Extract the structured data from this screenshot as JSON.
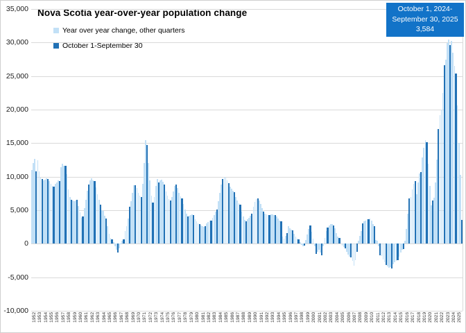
{
  "title": "Nova Scotia year-over-year population change",
  "legend": {
    "other_quarters": "Year over year change, other quarters",
    "oct_sep": "October 1-September 30"
  },
  "callout": {
    "line1": "October 1, 2024-",
    "line2": "September 30, 2025",
    "value": "3,584"
  },
  "colors": {
    "light_bar": "#c2e0f6",
    "dark_bar": "#2171b5",
    "callout_bg": "#1273c8",
    "gridline": "#d9d9d9",
    "axis_text": "#1a1a1a"
  },
  "chart_data": {
    "type": "bar",
    "title": "Nova Scotia year-over-year population change",
    "xlabel": "",
    "ylabel": "",
    "ylim": [
      -10000,
      35000
    ],
    "ytick_step": 5000,
    "ytick_labels": [
      "35,000",
      "30,000",
      "25,000",
      "20,000",
      "15,000",
      "10,000",
      "5,000",
      "0",
      "-5,000",
      "-10,000"
    ],
    "ytick_values": [
      35000,
      30000,
      25000,
      20000,
      15000,
      10000,
      5000,
      0,
      -5000,
      -10000
    ],
    "grid": true,
    "legend_position": "top-left",
    "series": [
      {
        "name": "Year over year change, other quarters",
        "role": "light",
        "quarters": "Q1-Q3"
      },
      {
        "name": "October 1-September 30",
        "role": "dark",
        "quarters": "Q4 (year ending September 30)"
      }
    ],
    "dark_quarter_index": 3,
    "callout": {
      "label": "October 1, 2024-September 30, 2025",
      "value": 3584
    },
    "years": [
      1952,
      1953,
      1954,
      1955,
      1956,
      1957,
      1958,
      1959,
      1960,
      1961,
      1962,
      1963,
      1964,
      1965,
      1966,
      1967,
      1968,
      1969,
      1970,
      1971,
      1972,
      1973,
      1974,
      1975,
      1976,
      1977,
      1978,
      1979,
      1980,
      1981,
      1982,
      1983,
      1984,
      1985,
      1986,
      1987,
      1988,
      1989,
      1990,
      1991,
      1992,
      1993,
      1994,
      1995,
      1996,
      1997,
      1998,
      1999,
      2000,
      2001,
      2002,
      2003,
      2004,
      2005,
      2006,
      2007,
      2008,
      2009,
      2010,
      2011,
      2012,
      2013,
      2014,
      2015,
      2016,
      2017,
      2018,
      2019,
      2020,
      2021,
      2022,
      2023,
      2024,
      2025
    ],
    "values_per_year_q1_to_q4": [
      [
        11000,
        12000,
        12700,
        10800
      ],
      [
        12500,
        10800,
        9900,
        9700
      ],
      [
        9500,
        9600,
        9800,
        9700
      ],
      [
        9300,
        8900,
        8600,
        8500
      ],
      [
        8900,
        9100,
        9400,
        9300
      ],
      [
        11400,
        11900,
        11600,
        11600
      ],
      [
        10400,
        8100,
        7000,
        6600
      ],
      [
        6400,
        6300,
        6500,
        6600
      ],
      [
        5600,
        4700,
        3900,
        4100
      ],
      [
        5300,
        6600,
        7900,
        8800
      ],
      [
        9400,
        9800,
        9500,
        9300
      ],
      [
        8400,
        7400,
        6600,
        5800
      ],
      [
        5000,
        4900,
        4200,
        3800
      ],
      [
        2600,
        1500,
        900,
        700
      ],
      [
        200,
        -400,
        -900,
        -1300
      ],
      [
        -700,
        -100,
        400,
        700
      ],
      [
        1900,
        2600,
        3800,
        5500
      ],
      [
        6300,
        7600,
        8700,
        8700
      ],
      [
        8300,
        7600,
        7200,
        7000
      ],
      [
        8900,
        12000,
        15400,
        14700
      ],
      [
        12000,
        9500,
        7200,
        6100
      ],
      [
        7000,
        8600,
        9700,
        9100
      ],
      [
        9400,
        9600,
        9200,
        8800
      ],
      [
        7800,
        7200,
        6700,
        6500
      ],
      [
        7000,
        7800,
        8600,
        8800
      ],
      [
        8300,
        7600,
        7100,
        6800
      ],
      [
        5900,
        5100,
        4500,
        4100
      ],
      [
        4200,
        4300,
        4400,
        4300
      ],
      [
        3700,
        3300,
        3000,
        2900
      ],
      [
        2700,
        2600,
        2500,
        2600
      ],
      [
        3000,
        3200,
        3400,
        3500
      ],
      [
        3900,
        4300,
        4800,
        5100
      ],
      [
        6300,
        7600,
        8800,
        9700
      ],
      [
        10000,
        9900,
        9400,
        9000
      ],
      [
        8500,
        8200,
        7900,
        7700
      ],
      [
        7000,
        6400,
        6000,
        5800
      ],
      [
        4800,
        4100,
        3600,
        3300
      ],
      [
        3700,
        3900,
        4200,
        4500
      ],
      [
        5500,
        6200,
        6700,
        6800
      ],
      [
        6500,
        5900,
        5300,
        4800
      ],
      [
        4500,
        4400,
        4300,
        4300
      ],
      [
        4400,
        4400,
        4300,
        4300
      ],
      [
        4100,
        3800,
        3500,
        3300
      ],
      [
        1100,
        800,
        1200,
        1600
      ],
      [
        2600,
        2300,
        2100,
        2050
      ],
      [
        1500,
        1100,
        800,
        700
      ],
      [
        200,
        -200,
        -400,
        -300
      ],
      [
        600,
        1400,
        2200,
        2750
      ],
      [
        1800,
        800,
        -400,
        -1550
      ],
      [
        -1200,
        -900,
        -1300,
        -1700
      ],
      [
        -400,
        900,
        1900,
        2400
      ],
      [
        2700,
        2900,
        2900,
        2750
      ],
      [
        2300,
        1600,
        1100,
        850
      ],
      [
        0,
        -300,
        -500,
        -700
      ],
      [
        -1200,
        -1600,
        -1900,
        -2050
      ],
      [
        -2600,
        -3300,
        -2400,
        -1200
      ],
      [
        400,
        1200,
        1900,
        3000
      ],
      [
        3300,
        3450,
        3700,
        3680
      ],
      [
        3800,
        3400,
        2900,
        2580
      ],
      [
        600,
        400,
        -400,
        -1700
      ],
      [
        -1800,
        -2300,
        -2800,
        -3200
      ],
      [
        -3400,
        -3600,
        -3500,
        -3700
      ],
      [
        -3100,
        -2800,
        -2600,
        -2500
      ],
      [
        -1900,
        -1300,
        -900,
        -800
      ],
      [
        500,
        2200,
        4500,
        6800
      ],
      [
        7000,
        8100,
        8900,
        9300
      ],
      [
        7400,
        9100,
        10500,
        10700
      ],
      [
        12900,
        14300,
        15500,
        15100
      ],
      [
        11900,
        8600,
        5700,
        6400
      ],
      [
        6900,
        9100,
        12600,
        17100
      ],
      [
        19200,
        20000,
        22500,
        26600
      ],
      [
        27500,
        29900,
        30400,
        29600
      ],
      [
        30200,
        28500,
        26500,
        25400
      ],
      [
        20600,
        15000,
        10300,
        3584
      ]
    ]
  }
}
